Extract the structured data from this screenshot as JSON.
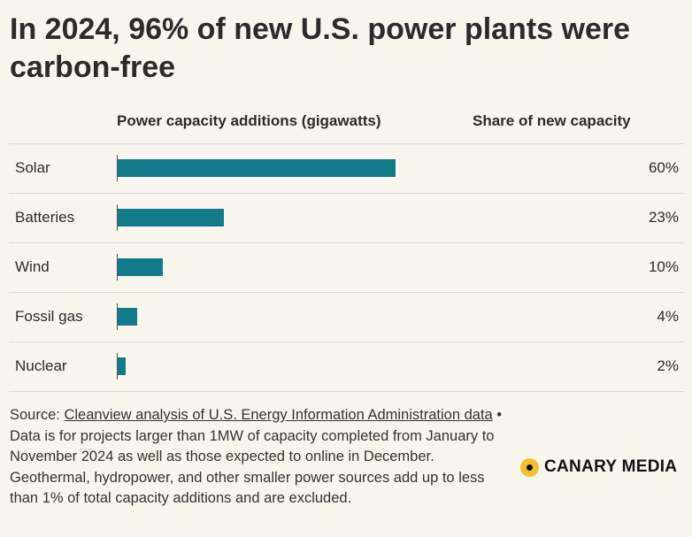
{
  "title": "In 2024, 96% of new U.S. power plants were carbon-free",
  "colors": {
    "bar": "#127a89",
    "background": "#f8f5ec"
  },
  "chart_data": {
    "type": "bar",
    "orientation": "horizontal",
    "column_headers": {
      "bars": "Power capacity additions (gigawatts)",
      "share": "Share of new capacity"
    },
    "categories": [
      "Solar",
      "Batteries",
      "Wind",
      "Fossil gas",
      "Nuclear"
    ],
    "values": [
      30.0,
      11.5,
      4.9,
      2.1,
      0.9
    ],
    "shares": [
      "60%",
      "23%",
      "10%",
      "4%",
      "2%"
    ],
    "xlim": [
      0,
      42
    ]
  },
  "source": {
    "prefix": "Source: ",
    "link_text": "Cleanview analysis of U.S. Energy Information Administration data",
    "note": " • Data is for projects larger than 1MW of capacity completed from January to November 2024 as well as those expected to online in December. Geothermal, hydropower, and other smaller power sources add up to less than 1% of total capacity additions and are excluded."
  },
  "logo": {
    "text": "CANARY MEDIA"
  }
}
